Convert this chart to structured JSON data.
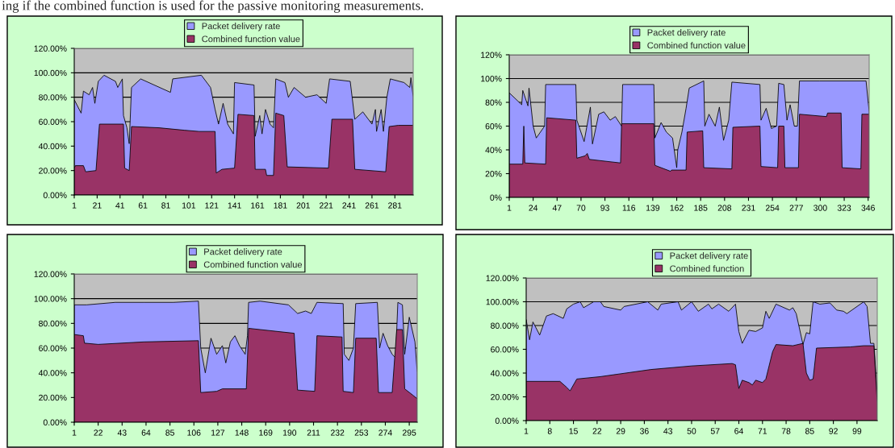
{
  "chart_data": [
    {
      "type": "area",
      "annotations": [
        "ing if the combined function is used for the passive monitoring measurements."
      ],
      "legend": "top",
      "grid": "y",
      "xlim": [
        1,
        297
      ],
      "xticks": [
        1,
        21,
        41,
        61,
        81,
        101,
        121,
        141,
        161,
        181,
        201,
        221,
        241,
        261,
        281
      ],
      "ylim": [
        0,
        120
      ],
      "yticks": [
        {
          "value": 0,
          "label": "0.00%"
        },
        {
          "value": 20,
          "label": "20.00%"
        },
        {
          "value": 40,
          "label": "40.00%"
        },
        {
          "value": 60,
          "label": "60.00%"
        },
        {
          "value": 80,
          "label": "80.00%"
        },
        {
          "value": 100,
          "label": "100.00%"
        },
        {
          "value": 120,
          "label": "120.00%"
        }
      ],
      "series": [
        {
          "name": "Packet delivery rate",
          "color": "#9999ff",
          "x": [
            1,
            7,
            9,
            14,
            17,
            19,
            22,
            27,
            37,
            39,
            43,
            44,
            47,
            49,
            51,
            59,
            85,
            87,
            112,
            120,
            124,
            127,
            131,
            135,
            140,
            141,
            158,
            159,
            163,
            165,
            168,
            172,
            175,
            177,
            185,
            188,
            193,
            203,
            213,
            221,
            224,
            242,
            246,
            253,
            261,
            264,
            265,
            269,
            271,
            274,
            277,
            289,
            294,
            295,
            297
          ],
          "values": [
            78,
            67,
            85,
            82,
            88,
            75,
            93,
            98,
            93,
            88,
            95,
            65,
            55,
            42,
            88,
            95,
            84,
            95,
            98,
            88,
            70,
            58,
            75,
            58,
            50,
            92,
            90,
            48,
            65,
            50,
            70,
            58,
            55,
            95,
            92,
            80,
            88,
            80,
            82,
            75,
            95,
            93,
            62,
            68,
            58,
            70,
            52,
            70,
            52,
            80,
            95,
            92,
            88,
            96,
            80
          ]
        },
        {
          "name": "Combined function value",
          "color": "#993366",
          "x": [
            1,
            2,
            9,
            11,
            20,
            23,
            44,
            45,
            49,
            51,
            75,
            97,
            110,
            124,
            125,
            130,
            141,
            144,
            158,
            159,
            168,
            169,
            175,
            177,
            184,
            187,
            223,
            226,
            244,
            246,
            273,
            276,
            284,
            297
          ],
          "values": [
            22,
            24,
            24,
            19,
            20,
            58,
            58,
            22,
            20,
            56,
            55,
            53,
            52,
            52,
            18,
            21,
            22,
            66,
            65,
            21,
            21,
            16,
            16,
            67,
            65,
            23,
            22,
            62,
            62,
            21,
            19,
            56,
            57,
            57
          ]
        }
      ]
    },
    {
      "type": "area",
      "legend": "top",
      "grid": "y",
      "xlim": [
        1,
        347
      ],
      "xticks": [
        1,
        24,
        47,
        70,
        93,
        116,
        139,
        162,
        185,
        208,
        231,
        254,
        277,
        300,
        323,
        346
      ],
      "ylim": [
        0,
        120
      ],
      "yticks": [
        {
          "value": 0,
          "label": "0%"
        },
        {
          "value": 20,
          "label": "20%"
        },
        {
          "value": 40,
          "label": "40%"
        },
        {
          "value": 60,
          "label": "60%"
        },
        {
          "value": 80,
          "label": "80%"
        },
        {
          "value": 100,
          "label": "100%"
        },
        {
          "value": 120,
          "label": "120%"
        }
      ],
      "series": [
        {
          "name": "Packet delivery rate",
          "color": "#9999ff",
          "x": [
            1,
            13,
            14,
            19,
            20,
            24,
            27,
            35,
            36,
            65,
            66,
            73,
            79,
            81,
            87,
            92,
            98,
            103,
            109,
            110,
            140,
            141,
            147,
            152,
            158,
            162,
            163,
            167,
            171,
            174,
            188,
            189,
            193,
            199,
            203,
            207,
            212,
            215,
            242,
            243,
            248,
            253,
            258,
            260,
            265,
            268,
            271,
            275,
            278,
            280,
            299,
            344,
            347
          ],
          "values": [
            88,
            78,
            90,
            77,
            92,
            60,
            50,
            60,
            95,
            95,
            65,
            47,
            76,
            45,
            70,
            72,
            65,
            68,
            60,
            95,
            95,
            50,
            63,
            55,
            50,
            25,
            40,
            55,
            75,
            92,
            98,
            60,
            70,
            60,
            76,
            48,
            65,
            97,
            95,
            65,
            75,
            58,
            60,
            96,
            95,
            65,
            78,
            60,
            60,
            98,
            98,
            98,
            72
          ]
        },
        {
          "name": "Combined function value",
          "color": "#993366",
          "x": [
            1,
            14,
            15,
            16,
            36,
            37,
            65,
            66,
            74,
            76,
            78,
            108,
            109,
            140,
            141,
            156,
            157,
            171,
            172,
            187,
            188,
            215,
            216,
            242,
            243,
            259,
            260,
            265,
            266,
            279,
            280,
            306,
            307,
            320,
            321,
            339,
            340,
            347
          ],
          "values": [
            28,
            28,
            60,
            29,
            28,
            67,
            65,
            33,
            35,
            37,
            32,
            29,
            62,
            62,
            27,
            22,
            23,
            23,
            55,
            56,
            25,
            24,
            59,
            60,
            26,
            25,
            60,
            60,
            25,
            25,
            70,
            68,
            71,
            71,
            25,
            24,
            70,
            70
          ]
        }
      ]
    },
    {
      "type": "area",
      "legend": "top",
      "grid": "y",
      "xlim": [
        1,
        302
      ],
      "xticks": [
        1,
        22,
        43,
        64,
        85,
        106,
        127,
        148,
        169,
        190,
        211,
        232,
        253,
        274,
        295
      ],
      "ylim": [
        0,
        120
      ],
      "yticks": [
        {
          "value": 0,
          "label": "0.00%"
        },
        {
          "value": 20,
          "label": "20.00%"
        },
        {
          "value": 40,
          "label": "40.00%"
        },
        {
          "value": 60,
          "label": "60.00%"
        },
        {
          "value": 80,
          "label": "80.00%"
        },
        {
          "value": 100,
          "label": "100.00%"
        },
        {
          "value": 120,
          "label": "120.00%"
        }
      ],
      "series": [
        {
          "name": "Packet delivery rate",
          "color": "#9999ff",
          "x": [
            1,
            12,
            37,
            62,
            88,
            110,
            112,
            116,
            121,
            126,
            131,
            134,
            138,
            142,
            146,
            151,
            153,
            154,
            164,
            189,
            197,
            204,
            209,
            214,
            237,
            238,
            242,
            246,
            248,
            267,
            269,
            272,
            276,
            280,
            283,
            285,
            289,
            291,
            295,
            300,
            302
          ],
          "values": [
            95,
            95,
            97,
            97,
            97,
            98,
            60,
            40,
            68,
            55,
            62,
            48,
            65,
            70,
            62,
            55,
            70,
            97,
            98,
            95,
            88,
            90,
            88,
            97,
            96,
            55,
            50,
            60,
            96,
            97,
            60,
            72,
            62,
            55,
            52,
            97,
            95,
            55,
            85,
            65,
            40
          ]
        },
        {
          "name": "Combined function value",
          "color": "#993366",
          "x": [
            1,
            9,
            10,
            22,
            62,
            110,
            112,
            126,
            131,
            152,
            154,
            164,
            194,
            197,
            212,
            214,
            236,
            237,
            246,
            248,
            266,
            268,
            280,
            284,
            289,
            291,
            298,
            302
          ],
          "values": [
            71,
            70,
            64,
            63,
            65,
            66,
            24,
            25,
            27,
            27,
            76,
            75,
            72,
            26,
            25,
            70,
            69,
            25,
            24,
            68,
            68,
            24,
            24,
            75,
            75,
            27,
            22,
            19
          ]
        }
      ]
    },
    {
      "type": "area",
      "legend": "top",
      "grid": "y",
      "xlim": [
        1,
        105
      ],
      "xticks": [
        1,
        8,
        15,
        22,
        29,
        36,
        43,
        50,
        57,
        64,
        71,
        78,
        85,
        92,
        99
      ],
      "ylim": [
        0,
        120
      ],
      "yticks": [
        {
          "value": 0,
          "label": "0.00%"
        },
        {
          "value": 20,
          "label": "20.00%"
        },
        {
          "value": 40,
          "label": "40.00%"
        },
        {
          "value": 60,
          "label": "60.00%"
        },
        {
          "value": 80,
          "label": "80.00%"
        },
        {
          "value": 100,
          "label": "100.00%"
        },
        {
          "value": 120,
          "label": "120.00%"
        }
      ],
      "series": [
        {
          "name": "Packet delivery rate",
          "color": "#9999ff",
          "x": [
            1,
            2,
            3,
            5,
            7,
            9,
            12,
            13,
            15,
            17,
            18,
            21,
            23,
            24,
            29,
            30,
            37,
            40,
            41,
            46,
            47,
            50,
            52,
            55,
            56,
            58,
            61,
            63,
            64,
            65,
            67,
            69,
            71,
            72,
            73,
            75,
            79,
            80,
            81,
            83,
            84,
            85,
            86,
            88,
            91,
            93,
            95,
            96,
            101,
            102,
            103,
            104,
            105
          ],
          "values": [
            85,
            68,
            83,
            72,
            88,
            90,
            86,
            94,
            98,
            100,
            95,
            100,
            100,
            96,
            93,
            96,
            100,
            93,
            98,
            100,
            93,
            100,
            92,
            98,
            94,
            98,
            92,
            98,
            75,
            65,
            76,
            75,
            78,
            92,
            86,
            98,
            93,
            95,
            90,
            64,
            74,
            73,
            100,
            98,
            99,
            93,
            92,
            90,
            100,
            96,
            65,
            65,
            22
          ]
        },
        {
          "name": "Combined function",
          "color": "#993366",
          "x": [
            1,
            11,
            13,
            14,
            16,
            23,
            38,
            50,
            62,
            63,
            64,
            65,
            67,
            68,
            69,
            71,
            72,
            74,
            75,
            80,
            83,
            84,
            85,
            86,
            87,
            97,
            101,
            104,
            105
          ],
          "values": [
            33,
            33,
            28,
            25,
            35,
            37,
            43,
            46,
            48,
            47,
            27,
            34,
            32,
            30,
            34,
            32,
            35,
            58,
            64,
            63,
            65,
            40,
            34,
            35,
            61,
            62,
            63,
            63,
            15
          ]
        }
      ]
    }
  ]
}
